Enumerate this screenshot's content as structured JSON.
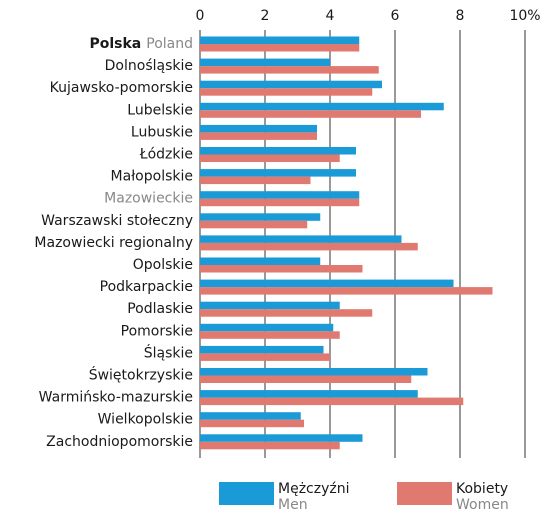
{
  "chart_data": {
    "type": "bar",
    "orientation": "horizontal",
    "categories": [
      "Polska",
      "Dolnośląskie",
      "Kujawsko-pomorskie",
      "Lubelskie",
      "Lubuskie",
      "Łódzkie",
      "Małopolskie",
      "Mazowieckie",
      "Warszawski stołeczny",
      "Mazowiecki regionalny",
      "Opolskie",
      "Podkarpackie",
      "Podlaskie",
      "Pomorskie",
      "Śląskie",
      "Świętokrzyskie",
      "Warmińsko-mazurskie",
      "Wielkopolskie",
      "Zachodniopomorskie"
    ],
    "total_label_en": "Poland",
    "muted_categories": [
      7
    ],
    "series": [
      {
        "name": "Mężczyźni",
        "name_en": "Men",
        "color": "#1a9ad6",
        "values": [
          4.9,
          4.0,
          5.6,
          7.5,
          3.6,
          4.8,
          4.8,
          4.9,
          3.7,
          6.2,
          3.7,
          7.8,
          4.3,
          4.1,
          3.8,
          7.0,
          6.7,
          3.1,
          5.0
        ]
      },
      {
        "name": "Kobiety",
        "name_en": "Women",
        "color": "#e07a70",
        "values": [
          4.9,
          5.5,
          5.3,
          6.8,
          3.6,
          4.3,
          3.4,
          4.9,
          3.3,
          6.7,
          5.0,
          9.0,
          5.3,
          4.3,
          4.0,
          6.5,
          8.1,
          3.2,
          4.3
        ]
      }
    ],
    "xlim": [
      0,
      10
    ],
    "xticks": [
      0,
      2,
      4,
      6,
      8,
      {
        "value": 10,
        "label": "10%"
      }
    ],
    "grid": true
  }
}
